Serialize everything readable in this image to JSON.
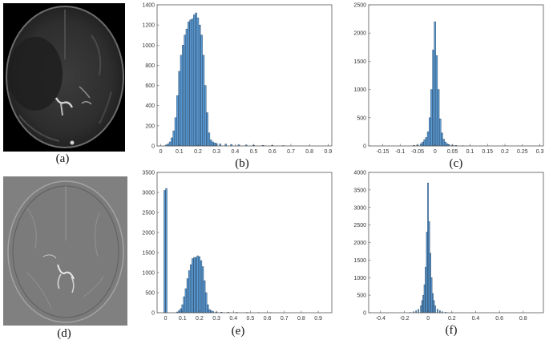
{
  "panels": {
    "a": {
      "caption": "(a)",
      "content": "brain MRI axial slice (dark)"
    },
    "d": {
      "caption": "(d)",
      "content": "brain MRI filtered slice (gray)"
    }
  },
  "chart_data": [
    {
      "id": "b",
      "caption": "(b)",
      "type": "bar",
      "xlim": [
        -0.02,
        0.92
      ],
      "ylim": [
        0,
        1400
      ],
      "xticks": [
        0,
        0.1,
        0.2,
        0.3,
        0.4,
        0.5,
        0.6,
        0.7,
        0.8,
        0.9
      ],
      "xtick_labels": [
        "0",
        "0.1",
        "0.2",
        "0.3",
        "0.4",
        "0.5",
        "0.6",
        "0.7",
        "0.8",
        "0.9"
      ],
      "yticks": [
        0,
        200,
        400,
        600,
        800,
        1000,
        1200,
        1400
      ],
      "bin_width": 0.01,
      "bin_centers": [
        0.03,
        0.04,
        0.05,
        0.06,
        0.07,
        0.08,
        0.09,
        0.1,
        0.11,
        0.12,
        0.13,
        0.14,
        0.15,
        0.16,
        0.17,
        0.18,
        0.19,
        0.2,
        0.21,
        0.22,
        0.23,
        0.24,
        0.25,
        0.26,
        0.27,
        0.28,
        0.29,
        0.3,
        0.32,
        0.35,
        0.38,
        0.42,
        0.46,
        0.5,
        0.55,
        0.6,
        0.66
      ],
      "values": [
        10,
        20,
        40,
        80,
        150,
        280,
        500,
        740,
        900,
        1000,
        1100,
        1160,
        1230,
        1250,
        1260,
        1300,
        1320,
        1270,
        1200,
        1100,
        900,
        600,
        330,
        130,
        60,
        40,
        30,
        25,
        20,
        18,
        15,
        12,
        10,
        8,
        6,
        5,
        4
      ],
      "bar_color": "#5b9bd5"
    },
    {
      "id": "c",
      "caption": "(c)",
      "type": "bar",
      "xlim": [
        -0.19,
        0.31
      ],
      "ylim": [
        0,
        2500
      ],
      "xticks": [
        -0.15,
        -0.1,
        -0.05,
        0,
        0.05,
        0.1,
        0.15,
        0.2,
        0.25,
        0.3
      ],
      "xtick_labels": [
        "-0.15",
        "-0.1",
        "-0.05",
        "0",
        "0.05",
        "0.1",
        "0.15",
        "0.2",
        "0.25",
        "0.3"
      ],
      "yticks": [
        0,
        500,
        1000,
        1500,
        2000,
        2500
      ],
      "bin_width": 0.005,
      "bin_centers": [
        -0.06,
        -0.05,
        -0.04,
        -0.035,
        -0.03,
        -0.025,
        -0.02,
        -0.015,
        -0.01,
        -0.005,
        0,
        0.005,
        0.01,
        0.015,
        0.02,
        0.025,
        0.03,
        0.035,
        0.04,
        0.05,
        0.06,
        0.08
      ],
      "values": [
        10,
        20,
        40,
        70,
        110,
        150,
        250,
        500,
        1000,
        1700,
        2200,
        1600,
        1000,
        480,
        230,
        120,
        70,
        40,
        25,
        15,
        10,
        5
      ],
      "bar_color": "#5b9bd5"
    },
    {
      "id": "e",
      "caption": "(e)",
      "type": "bar",
      "xlim": [
        -0.05,
        0.98
      ],
      "ylim": [
        0,
        3500
      ],
      "xticks": [
        0,
        0.1,
        0.2,
        0.3,
        0.4,
        0.5,
        0.6,
        0.7,
        0.8,
        0.9
      ],
      "xtick_labels": [
        "0",
        "0.1",
        "0.2",
        "0.3",
        "0.4",
        "0.5",
        "0.6",
        "0.7",
        "0.8",
        "0.9"
      ],
      "yticks": [
        0,
        500,
        1000,
        1500,
        2000,
        2500,
        3000,
        3500
      ],
      "bin_width": 0.01,
      "bin_centers": [
        -0.005,
        0.005,
        0.07,
        0.08,
        0.09,
        0.1,
        0.11,
        0.12,
        0.13,
        0.14,
        0.15,
        0.16,
        0.17,
        0.18,
        0.19,
        0.2,
        0.21,
        0.22,
        0.23,
        0.24,
        0.25,
        0.26,
        0.27,
        0.28,
        0.3,
        0.33,
        0.37,
        0.42,
        0.48,
        0.55,
        0.62
      ],
      "values": [
        3050,
        3100,
        20,
        50,
        100,
        200,
        400,
        600,
        850,
        1050,
        1200,
        1350,
        1380,
        1380,
        1420,
        1400,
        1300,
        1150,
        800,
        500,
        200,
        80,
        50,
        30,
        20,
        15,
        12,
        10,
        8,
        5,
        4
      ],
      "bar_color": "#5b9bd5"
    },
    {
      "id": "f",
      "caption": "(f)",
      "type": "bar",
      "xlim": [
        -0.5,
        0.97
      ],
      "ylim": [
        0,
        4000
      ],
      "xticks": [
        -0.4,
        -0.2,
        0,
        0.2,
        0.4,
        0.6,
        0.8
      ],
      "xtick_labels": [
        "-0.4",
        "-0.2",
        "0",
        "0.2",
        "0.4",
        "0.6",
        "0.8"
      ],
      "yticks": [
        0,
        500,
        1000,
        1500,
        2000,
        2500,
        3000,
        3500,
        4000
      ],
      "bin_width": 0.01,
      "bin_centers": [
        -0.15,
        -0.12,
        -0.1,
        -0.08,
        -0.06,
        -0.05,
        -0.04,
        -0.03,
        -0.02,
        -0.01,
        0,
        0.01,
        0.02,
        0.03,
        0.04,
        0.05,
        0.06,
        0.08,
        0.1,
        0.12,
        0.15,
        0.2
      ],
      "values": [
        10,
        30,
        60,
        100,
        200,
        350,
        500,
        800,
        1300,
        2300,
        3700,
        2600,
        1700,
        1000,
        550,
        350,
        200,
        100,
        60,
        30,
        15,
        8
      ],
      "bar_color": "#5b9bd5"
    }
  ]
}
